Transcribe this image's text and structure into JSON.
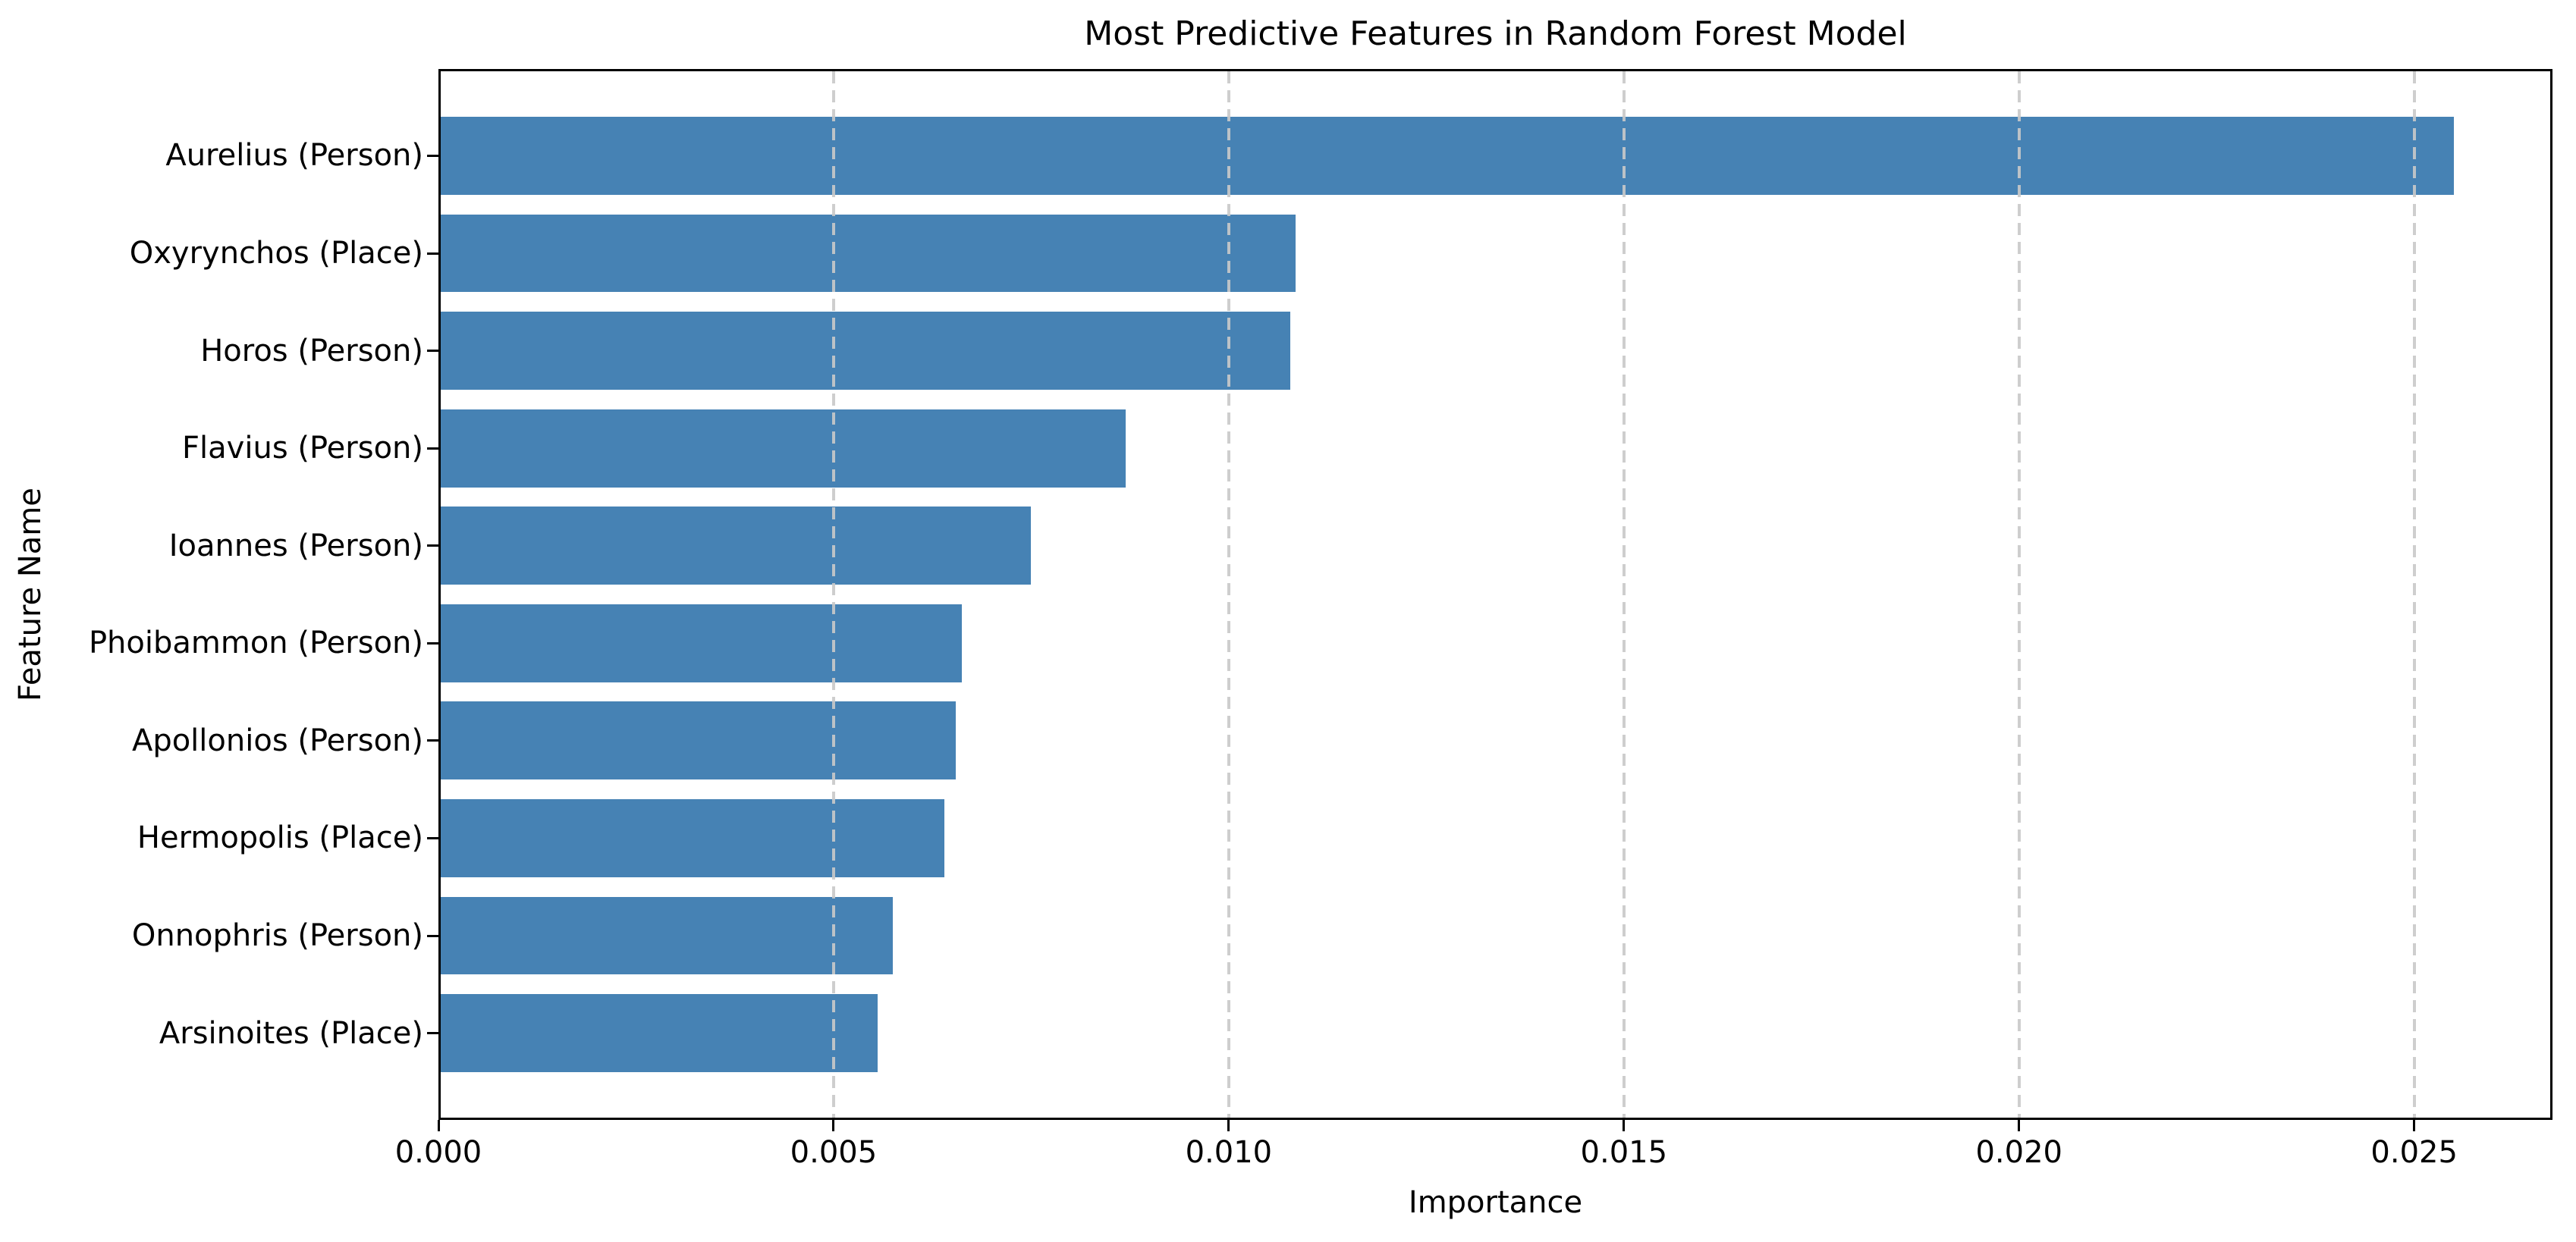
{
  "chart_data": {
    "type": "bar",
    "orientation": "horizontal",
    "title": "Most Predictive Features in Random Forest Model",
    "xlabel": "Importance",
    "ylabel": "Feature Name",
    "categories": [
      "Aurelius (Person)",
      "Oxyrynchos (Place)",
      "Horos (Person)",
      "Flavius (Person)",
      "Ioannes (Person)",
      "Phoibammon (Person)",
      "Apollonios (Person)",
      "Hermopolis (Place)",
      "Onnophris (Person)",
      "Arsinoites (Place)"
    ],
    "values": [
      0.0255,
      0.01085,
      0.01078,
      0.0087,
      0.0075,
      0.00662,
      0.00655,
      0.0064,
      0.00575,
      0.00556
    ],
    "xlim": [
      0,
      0.02675
    ],
    "xticks": [
      0.0,
      0.005,
      0.01,
      0.015,
      0.02,
      0.025
    ],
    "xtick_labels": [
      "0.000",
      "0.005",
      "0.010",
      "0.015",
      "0.020",
      "0.025"
    ],
    "grid": "vertical-dashed-on-top",
    "legend": "none",
    "bar_color": "#4682B4",
    "grid_color": "#C9C9C9",
    "spine_color": "#000000",
    "text_color": "#000000"
  }
}
